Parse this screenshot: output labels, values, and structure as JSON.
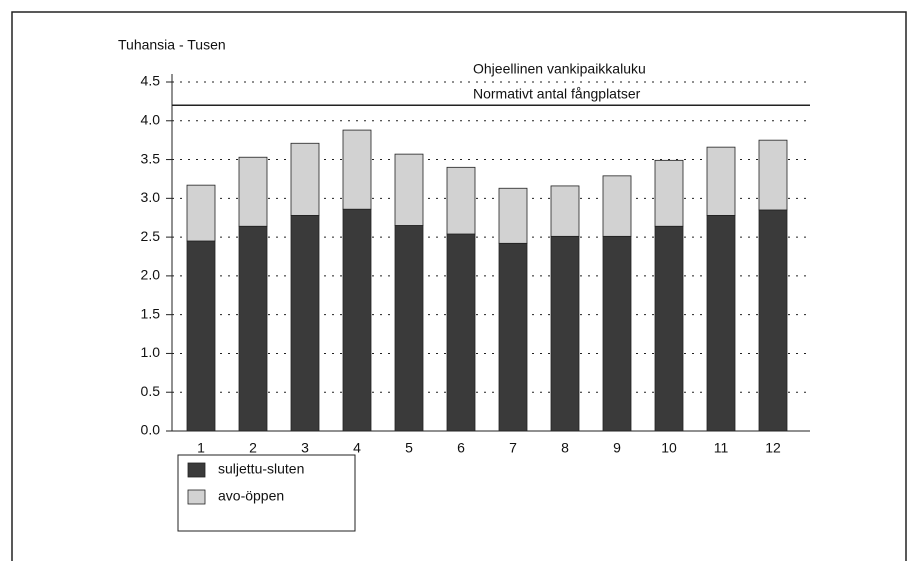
{
  "chart_data": {
    "type": "stacked_bar",
    "y_axis_label": "Tuhansia - Tusen",
    "categories": [
      "1",
      "2",
      "3",
      "4",
      "5",
      "6",
      "7",
      "8",
      "9",
      "10",
      "11",
      "12"
    ],
    "series": [
      {
        "name": "suljettu-sluten",
        "color": "#3a3a3a",
        "values": [
          2.45,
          2.64,
          2.78,
          2.86,
          2.65,
          2.54,
          2.42,
          2.51,
          2.51,
          2.64,
          2.78,
          2.85
        ]
      },
      {
        "name": "avo-öppen",
        "color": "#d2d2d2",
        "values": [
          0.72,
          0.89,
          0.93,
          1.02,
          0.92,
          0.86,
          0.71,
          0.65,
          0.78,
          0.85,
          0.88,
          0.9
        ]
      }
    ],
    "reference_line": {
      "value": 4.2,
      "labels": [
        "Ohjeellinen vankipaikkaluku",
        "Normativt antal fångplatser"
      ]
    },
    "ylim": [
      0,
      4.5
    ],
    "yticks": [
      {
        "value": 0,
        "label": "0.0"
      },
      0.5,
      {
        "value": 1,
        "label": "1.0"
      },
      1.5,
      {
        "value": 2,
        "label": "2.0"
      },
      2.5,
      {
        "value": 3,
        "label": "3.0"
      },
      3.5,
      {
        "value": 4,
        "label": "4.0"
      },
      4.5
    ],
    "grid": true
  }
}
